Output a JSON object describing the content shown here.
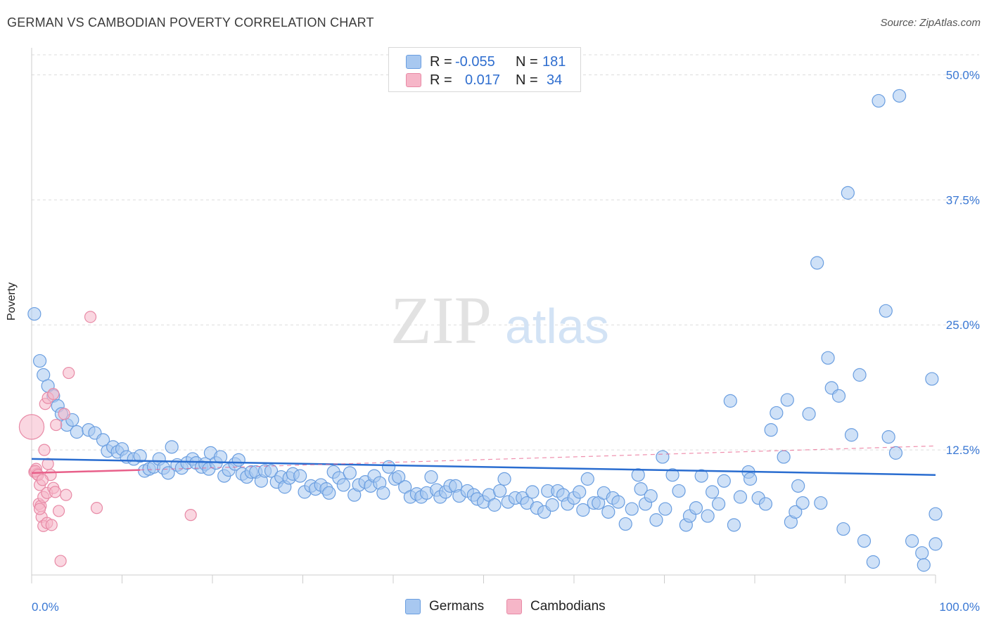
{
  "title": "GERMAN VS CAMBODIAN POVERTY CORRELATION CHART",
  "source": "Source: ZipAtlas.com",
  "watermark": {
    "zip": "ZIP",
    "atlas": "atlas"
  },
  "legend": {
    "rows": [
      {
        "r_label": "R =",
        "r_value": "-0.055",
        "n_label": "N =",
        "n_value": "181"
      },
      {
        "r_label": "R =",
        "r_value": "0.017",
        "n_label": "N =",
        "n_value": "34"
      }
    ]
  },
  "bottom_legend": {
    "germans": "Germans",
    "cambodians": "Cambodians"
  },
  "colors": {
    "german_fill": "#a8c8f0",
    "german_stroke": "#6a9ee0",
    "german_line": "#2a6dd0",
    "cambodian_fill": "#f6b6c8",
    "cambodian_stroke": "#e88aa6",
    "cambodian_line": "#e8608a",
    "axis_text": "#3a78d4"
  },
  "chart_data": {
    "type": "scatter",
    "title": "GERMAN VS CAMBODIAN POVERTY CORRELATION CHART",
    "xlabel": "",
    "ylabel": "Poverty",
    "xlim": [
      0,
      100
    ],
    "ylim": [
      0,
      52
    ],
    "x_tick_labels": [
      "0.0%",
      "100.0%"
    ],
    "y_ticks": [
      12.5,
      25.0,
      37.5,
      50.0
    ],
    "y_tick_labels": [
      "12.5%",
      "25.0%",
      "37.5%",
      "50.0%"
    ],
    "series": [
      {
        "name": "Germans",
        "trend": {
          "x": [
            0,
            100
          ],
          "y": [
            11.6,
            10.0
          ],
          "style": "solid"
        },
        "points": [
          [
            0.3,
            26.1,
            1
          ],
          [
            0.9,
            21.4,
            1
          ],
          [
            1.3,
            20.0,
            1
          ],
          [
            1.8,
            18.9,
            1
          ],
          [
            2.4,
            17.9,
            1
          ],
          [
            2.9,
            16.9,
            1
          ],
          [
            3.3,
            16.1,
            1
          ],
          [
            3.9,
            15.0,
            1
          ],
          [
            4.5,
            15.5,
            1
          ],
          [
            5.0,
            14.3,
            1
          ],
          [
            6.3,
            14.5,
            1
          ],
          [
            7.0,
            14.2,
            1
          ],
          [
            7.9,
            13.5,
            1
          ],
          [
            8.4,
            12.4,
            1
          ],
          [
            9.0,
            12.8,
            1
          ],
          [
            9.5,
            12.3,
            1
          ],
          [
            10.0,
            12.6,
            1
          ],
          [
            10.5,
            11.8,
            1
          ],
          [
            11.3,
            11.6,
            1
          ],
          [
            12.0,
            11.9,
            1
          ],
          [
            12.5,
            10.4,
            1
          ],
          [
            13.0,
            10.6,
            1
          ],
          [
            13.5,
            10.8,
            1
          ],
          [
            14.1,
            11.6,
            1
          ],
          [
            14.6,
            10.7,
            1
          ],
          [
            15.1,
            10.2,
            1
          ],
          [
            15.5,
            12.8,
            1
          ],
          [
            16.1,
            11.0,
            1
          ],
          [
            16.6,
            10.7,
            1
          ],
          [
            17.2,
            11.2,
            1
          ],
          [
            17.8,
            11.6,
            1
          ],
          [
            18.2,
            11.2,
            1
          ],
          [
            18.8,
            10.8,
            1
          ],
          [
            19.2,
            11.1,
            1
          ],
          [
            19.6,
            10.6,
            1
          ],
          [
            19.8,
            12.2,
            1
          ],
          [
            20.4,
            11.2,
            1
          ],
          [
            20.9,
            11.8,
            1
          ],
          [
            21.3,
            9.9,
            1
          ],
          [
            21.8,
            10.5,
            1
          ],
          [
            22.5,
            11.1,
            1
          ],
          [
            22.9,
            11.5,
            1
          ],
          [
            23.3,
            10.1,
            1
          ],
          [
            23.8,
            9.8,
            1
          ],
          [
            24.3,
            10.3,
            1
          ],
          [
            24.8,
            10.3,
            1
          ],
          [
            25.4,
            9.4,
            1
          ],
          [
            25.8,
            10.4,
            1
          ],
          [
            26.5,
            10.4,
            1
          ],
          [
            27.1,
            9.3,
            1
          ],
          [
            27.6,
            9.8,
            1
          ],
          [
            28.0,
            8.8,
            1
          ],
          [
            28.5,
            9.7,
            1
          ],
          [
            28.9,
            10.1,
            1
          ],
          [
            29.7,
            9.9,
            1
          ],
          [
            30.2,
            8.3,
            1
          ],
          [
            30.9,
            8.9,
            1
          ],
          [
            31.4,
            8.6,
            1
          ],
          [
            32.0,
            9.0,
            1
          ],
          [
            32.6,
            8.6,
            1
          ],
          [
            32.9,
            8.2,
            1
          ],
          [
            33.4,
            10.3,
            1
          ],
          [
            34.0,
            9.7,
            1
          ],
          [
            34.5,
            9.0,
            1
          ],
          [
            35.2,
            10.2,
            1
          ],
          [
            35.7,
            8.0,
            1
          ],
          [
            36.2,
            9.0,
            1
          ],
          [
            36.9,
            9.3,
            1
          ],
          [
            37.5,
            8.9,
            1
          ],
          [
            37.9,
            9.9,
            1
          ],
          [
            38.5,
            9.2,
            1
          ],
          [
            38.9,
            8.2,
            1
          ],
          [
            39.5,
            10.8,
            1
          ],
          [
            40.2,
            9.6,
            1
          ],
          [
            40.6,
            9.8,
            1
          ],
          [
            41.3,
            8.8,
            1
          ],
          [
            41.9,
            7.8,
            1
          ],
          [
            42.6,
            8.1,
            1
          ],
          [
            43.1,
            7.8,
            1
          ],
          [
            43.7,
            8.2,
            1
          ],
          [
            44.2,
            9.8,
            1
          ],
          [
            44.8,
            8.5,
            1
          ],
          [
            45.2,
            7.8,
            1
          ],
          [
            45.8,
            8.3,
            1
          ],
          [
            46.3,
            8.9,
            1
          ],
          [
            46.9,
            8.9,
            1
          ],
          [
            47.3,
            7.9,
            1
          ],
          [
            48.2,
            8.4,
            1
          ],
          [
            48.9,
            8.0,
            1
          ],
          [
            49.3,
            7.6,
            1
          ],
          [
            50.0,
            7.3,
            1
          ],
          [
            50.6,
            8.0,
            1
          ],
          [
            51.2,
            7.0,
            1
          ],
          [
            51.8,
            8.4,
            1
          ],
          [
            52.3,
            9.6,
            1
          ],
          [
            52.7,
            7.3,
            1
          ],
          [
            53.5,
            7.7,
            1
          ],
          [
            54.3,
            7.7,
            1
          ],
          [
            54.8,
            7.2,
            1
          ],
          [
            55.4,
            8.3,
            1
          ],
          [
            55.9,
            6.7,
            1
          ],
          [
            56.7,
            6.3,
            1
          ],
          [
            57.1,
            8.4,
            1
          ],
          [
            57.6,
            7.0,
            1
          ],
          [
            58.2,
            8.4,
            1
          ],
          [
            58.8,
            8.0,
            1
          ],
          [
            59.3,
            7.1,
            1
          ],
          [
            60.0,
            7.7,
            1
          ],
          [
            60.6,
            8.3,
            1
          ],
          [
            61.0,
            6.5,
            1
          ],
          [
            61.5,
            9.6,
            1
          ],
          [
            62.2,
            7.2,
            1
          ],
          [
            62.7,
            7.2,
            1
          ],
          [
            63.3,
            8.2,
            1
          ],
          [
            63.8,
            6.3,
            1
          ],
          [
            64.3,
            7.7,
            1
          ],
          [
            64.9,
            7.3,
            1
          ],
          [
            65.7,
            5.1,
            1
          ],
          [
            66.4,
            6.6,
            1
          ],
          [
            67.1,
            10.0,
            1
          ],
          [
            67.4,
            8.6,
            1
          ],
          [
            67.9,
            7.1,
            1
          ],
          [
            68.5,
            7.9,
            1
          ],
          [
            69.1,
            5.5,
            1
          ],
          [
            69.8,
            11.8,
            1
          ],
          [
            70.1,
            6.6,
            1
          ],
          [
            70.9,
            10.0,
            1
          ],
          [
            71.6,
            8.4,
            1
          ],
          [
            72.4,
            5.0,
            1
          ],
          [
            72.8,
            5.9,
            1
          ],
          [
            73.5,
            6.7,
            1
          ],
          [
            74.1,
            9.9,
            1
          ],
          [
            74.8,
            5.9,
            1
          ],
          [
            75.3,
            8.3,
            1
          ],
          [
            76.0,
            7.1,
            1
          ],
          [
            76.6,
            9.4,
            1
          ],
          [
            77.3,
            17.4,
            1
          ],
          [
            77.7,
            5.0,
            1
          ],
          [
            78.4,
            7.8,
            1
          ],
          [
            79.3,
            10.3,
            1
          ],
          [
            79.5,
            9.6,
            1
          ],
          [
            80.4,
            7.7,
            1
          ],
          [
            81.2,
            7.1,
            1
          ],
          [
            81.8,
            14.5,
            1
          ],
          [
            82.4,
            16.2,
            1
          ],
          [
            83.2,
            11.8,
            1
          ],
          [
            83.6,
            17.5,
            1
          ],
          [
            84.0,
            5.3,
            1
          ],
          [
            84.5,
            6.3,
            1
          ],
          [
            84.8,
            8.9,
            1
          ],
          [
            85.3,
            7.2,
            1
          ],
          [
            86.0,
            16.1,
            1
          ],
          [
            86.9,
            31.2,
            1
          ],
          [
            87.3,
            7.2,
            1
          ],
          [
            88.1,
            21.7,
            1
          ],
          [
            88.5,
            18.7,
            1
          ],
          [
            89.3,
            17.9,
            1
          ],
          [
            89.8,
            4.6,
            1
          ],
          [
            90.3,
            38.2,
            1
          ],
          [
            90.7,
            14.0,
            1
          ],
          [
            91.6,
            20.0,
            1
          ],
          [
            92.1,
            3.4,
            1
          ],
          [
            93.1,
            1.3,
            1
          ],
          [
            93.7,
            47.4,
            1
          ],
          [
            94.5,
            26.4,
            1
          ],
          [
            94.8,
            13.8,
            1
          ],
          [
            95.6,
            12.2,
            1
          ],
          [
            96.0,
            47.9,
            1
          ],
          [
            97.4,
            3.4,
            1
          ],
          [
            98.5,
            2.2,
            1
          ],
          [
            98.7,
            1.0,
            1
          ],
          [
            99.6,
            19.6,
            1
          ],
          [
            100.0,
            6.1,
            1
          ],
          [
            100.0,
            3.1,
            1
          ]
        ]
      },
      {
        "name": "Cambodians",
        "trend": {
          "x": [
            0,
            12
          ],
          "y": [
            10.2,
            10.5
          ],
          "style": "solid",
          "extension": {
            "x": [
              12,
              100
            ],
            "y": [
              10.5,
              12.9
            ],
            "style": "dashed"
          }
        },
        "points": [
          [
            0.0,
            14.8,
            2.2
          ],
          [
            0.3,
            10.3,
            1
          ],
          [
            0.5,
            10.6,
            1
          ],
          [
            0.6,
            10.1,
            1
          ],
          [
            0.8,
            7.1,
            1
          ],
          [
            0.9,
            9.0,
            1
          ],
          [
            1.0,
            6.9,
            1
          ],
          [
            1.1,
            5.8,
            1
          ],
          [
            1.3,
            4.9,
            1
          ],
          [
            1.3,
            7.8,
            1
          ],
          [
            1.4,
            12.5,
            1
          ],
          [
            1.5,
            17.1,
            1
          ],
          [
            1.7,
            5.2,
            1
          ],
          [
            1.7,
            8.2,
            1
          ],
          [
            1.8,
            17.7,
            1
          ],
          [
            1.8,
            11.1,
            1
          ],
          [
            2.1,
            10.0,
            1
          ],
          [
            2.2,
            5.0,
            1
          ],
          [
            2.4,
            18.1,
            1
          ],
          [
            2.4,
            8.7,
            1
          ],
          [
            2.6,
            8.3,
            1
          ],
          [
            2.7,
            15.0,
            1
          ],
          [
            3.0,
            6.4,
            1
          ],
          [
            3.2,
            1.4,
            1
          ],
          [
            3.6,
            16.1,
            1
          ],
          [
            3.8,
            8.0,
            1
          ],
          [
            4.1,
            20.2,
            1
          ],
          [
            6.5,
            25.8,
            1
          ],
          [
            7.2,
            6.7,
            1
          ],
          [
            17.6,
            6.0,
            1
          ],
          [
            0.4,
            10.4,
            1
          ],
          [
            0.7,
            10.0,
            1
          ],
          [
            1.2,
            9.5,
            1
          ],
          [
            0.9,
            6.6,
            1
          ]
        ]
      }
    ]
  }
}
